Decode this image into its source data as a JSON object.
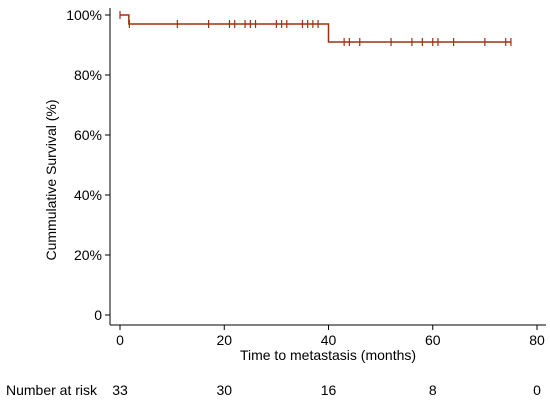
{
  "chart_data": {
    "type": "line",
    "title": "",
    "xlabel": "Time to metastasis (months)",
    "ylabel": "Cummulative Survival (%)",
    "xlim": [
      0,
      80
    ],
    "ylim": [
      0,
      100
    ],
    "x_ticks": [
      0,
      20,
      40,
      60,
      80
    ],
    "y_ticks": [
      0,
      20,
      40,
      60,
      80,
      100
    ],
    "y_tick_labels": [
      "0",
      "20%",
      "40%",
      "60%",
      "80%",
      "100%"
    ],
    "grid": false,
    "series": [
      {
        "color": "#a0300f",
        "steps": [
          {
            "x": 0,
            "y": 100
          },
          {
            "x": 1.7,
            "y": 97
          },
          {
            "x": 40,
            "y": 91
          }
        ],
        "x_end": 75,
        "censored": [
          {
            "x": 0,
            "y": 100
          },
          {
            "x": 1.8,
            "y": 97
          },
          {
            "x": 11,
            "y": 97
          },
          {
            "x": 17,
            "y": 97
          },
          {
            "x": 21,
            "y": 97
          },
          {
            "x": 22,
            "y": 97
          },
          {
            "x": 24,
            "y": 97
          },
          {
            "x": 25,
            "y": 97
          },
          {
            "x": 26,
            "y": 97
          },
          {
            "x": 30,
            "y": 97
          },
          {
            "x": 31,
            "y": 97
          },
          {
            "x": 32,
            "y": 97
          },
          {
            "x": 35,
            "y": 97
          },
          {
            "x": 36,
            "y": 97
          },
          {
            "x": 37,
            "y": 97
          },
          {
            "x": 38,
            "y": 97
          },
          {
            "x": 43,
            "y": 91
          },
          {
            "x": 44,
            "y": 91
          },
          {
            "x": 46,
            "y": 91
          },
          {
            "x": 52,
            "y": 91
          },
          {
            "x": 56,
            "y": 91
          },
          {
            "x": 58,
            "y": 91
          },
          {
            "x": 60,
            "y": 91
          },
          {
            "x": 61,
            "y": 91
          },
          {
            "x": 64,
            "y": 91
          },
          {
            "x": 70,
            "y": 91
          },
          {
            "x": 74,
            "y": 91
          },
          {
            "x": 75,
            "y": 91
          }
        ]
      }
    ],
    "number_at_risk": {
      "label": "Number at risk",
      "times": [
        0,
        20,
        40,
        60,
        80
      ],
      "values": [
        "33",
        "30",
        "16",
        "8",
        "0"
      ]
    }
  }
}
